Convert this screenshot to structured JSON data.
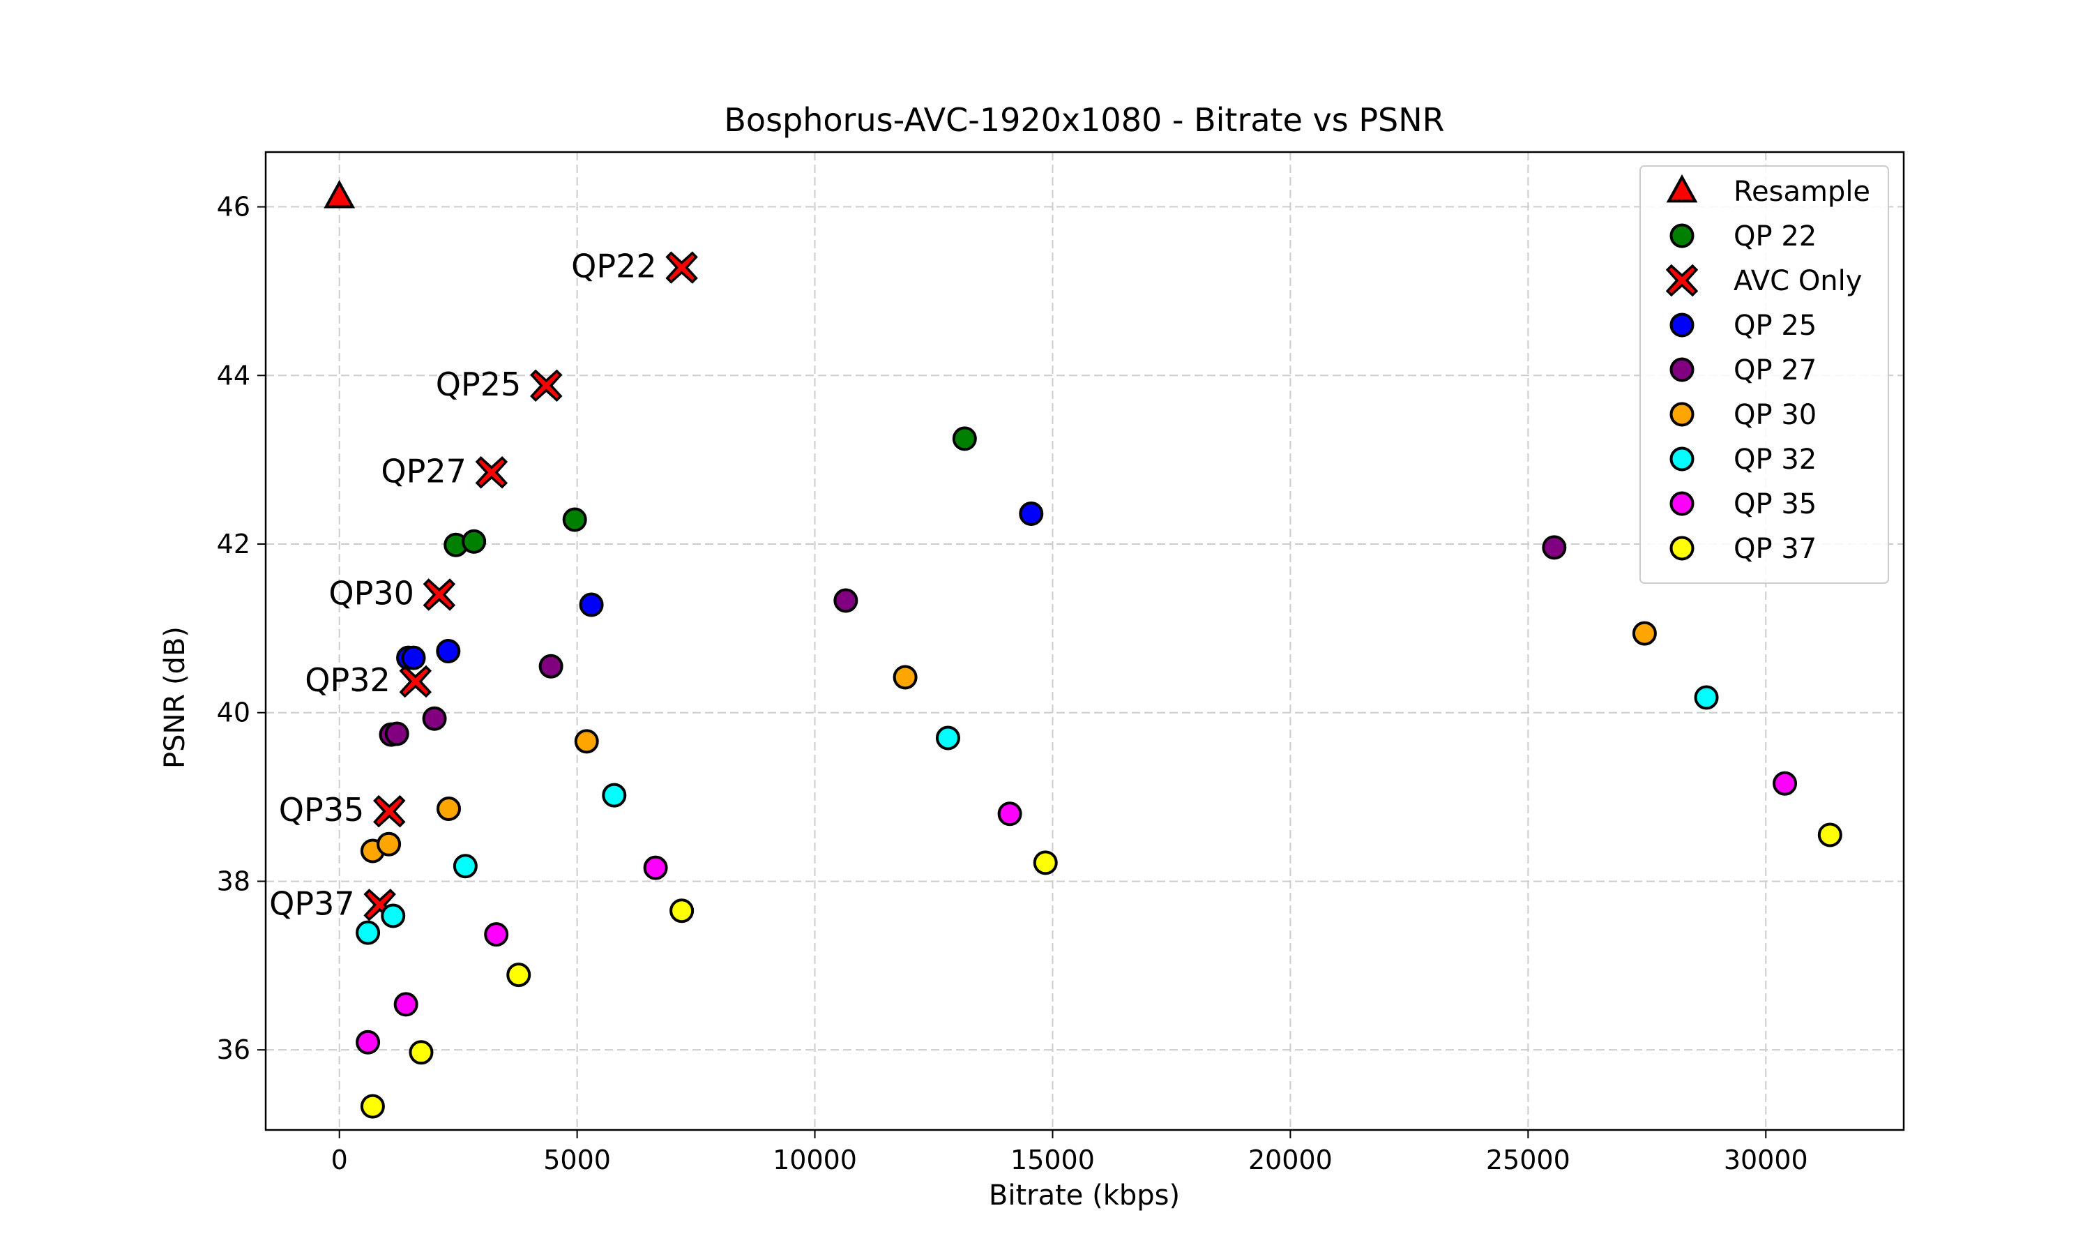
{
  "chart_data": {
    "type": "scatter",
    "title": "Bosphorus-AVC-1920x1080 - Bitrate vs PSNR",
    "xlabel": "Bitrate (kbps)",
    "ylabel": "PSNR (dB)",
    "xlim": [
      -1550,
      32900
    ],
    "ylim": [
      35.05,
      46.65
    ],
    "xticks": [
      0,
      5000,
      10000,
      15000,
      20000,
      25000,
      30000
    ],
    "yticks": [
      36,
      38,
      40,
      42,
      44,
      46
    ],
    "grid": true,
    "legend_position": "top-right",
    "series": [
      {
        "name": "Resample",
        "marker": "triangle",
        "color": "#ff0000",
        "points": [
          [
            0,
            46.12
          ]
        ]
      },
      {
        "name": "QP 22",
        "marker": "circle",
        "color": "#008000",
        "points": [
          [
            2450,
            41.99
          ],
          [
            2830,
            42.03
          ],
          [
            4950,
            42.29
          ],
          [
            13150,
            43.25
          ]
        ]
      },
      {
        "name": "AVC Only",
        "marker": "x",
        "color": "#ff0000",
        "points": [
          [
            7200,
            45.28
          ],
          [
            4350,
            43.88
          ],
          [
            3200,
            42.85
          ],
          [
            2100,
            41.4
          ],
          [
            1600,
            40.37
          ],
          [
            1050,
            38.83
          ],
          [
            850,
            37.72
          ]
        ]
      },
      {
        "name": "QP 25",
        "marker": "circle",
        "color": "#0000ff",
        "points": [
          [
            1450,
            40.65
          ],
          [
            1560,
            40.65
          ],
          [
            2290,
            40.73
          ],
          [
            5300,
            41.28
          ],
          [
            14550,
            42.36
          ]
        ]
      },
      {
        "name": "QP 27",
        "marker": "circle",
        "color": "#800080",
        "points": [
          [
            1090,
            39.74
          ],
          [
            1210,
            39.75
          ],
          [
            2000,
            39.93
          ],
          [
            4450,
            40.55
          ],
          [
            10650,
            41.33
          ],
          [
            25550,
            41.96
          ]
        ]
      },
      {
        "name": "QP 30",
        "marker": "circle",
        "color": "#ffa500",
        "points": [
          [
            700,
            38.36
          ],
          [
            1040,
            38.44
          ],
          [
            2300,
            38.86
          ],
          [
            5200,
            39.66
          ],
          [
            11900,
            40.42
          ],
          [
            27450,
            40.94
          ]
        ]
      },
      {
        "name": "QP 32",
        "marker": "circle",
        "color": "#00ffff",
        "points": [
          [
            600,
            37.39
          ],
          [
            1130,
            37.59
          ],
          [
            2650,
            38.18
          ],
          [
            5780,
            39.02
          ],
          [
            12800,
            39.7
          ],
          [
            28750,
            40.18
          ]
        ]
      },
      {
        "name": "QP 35",
        "marker": "circle",
        "color": "#ff00ff",
        "points": [
          [
            600,
            36.09
          ],
          [
            1400,
            36.54
          ],
          [
            3300,
            37.37
          ],
          [
            6650,
            38.16
          ],
          [
            14100,
            38.8
          ],
          [
            30400,
            39.16
          ]
        ]
      },
      {
        "name": "QP 37",
        "marker": "circle",
        "color": "#ffff00",
        "points": [
          [
            700,
            35.33
          ],
          [
            1720,
            35.97
          ],
          [
            3770,
            36.89
          ],
          [
            7200,
            37.65
          ],
          [
            14850,
            38.22
          ],
          [
            31350,
            38.55
          ]
        ]
      }
    ],
    "annotations": [
      {
        "text": "QP22",
        "x": 7200,
        "y": 45.28
      },
      {
        "text": "QP25",
        "x": 4350,
        "y": 43.88
      },
      {
        "text": "QP27",
        "x": 3200,
        "y": 42.85
      },
      {
        "text": "QP30",
        "x": 2100,
        "y": 41.4
      },
      {
        "text": "QP32",
        "x": 1600,
        "y": 40.37
      },
      {
        "text": "QP35",
        "x": 1050,
        "y": 38.83
      },
      {
        "text": "QP37",
        "x": 850,
        "y": 37.72
      }
    ]
  }
}
